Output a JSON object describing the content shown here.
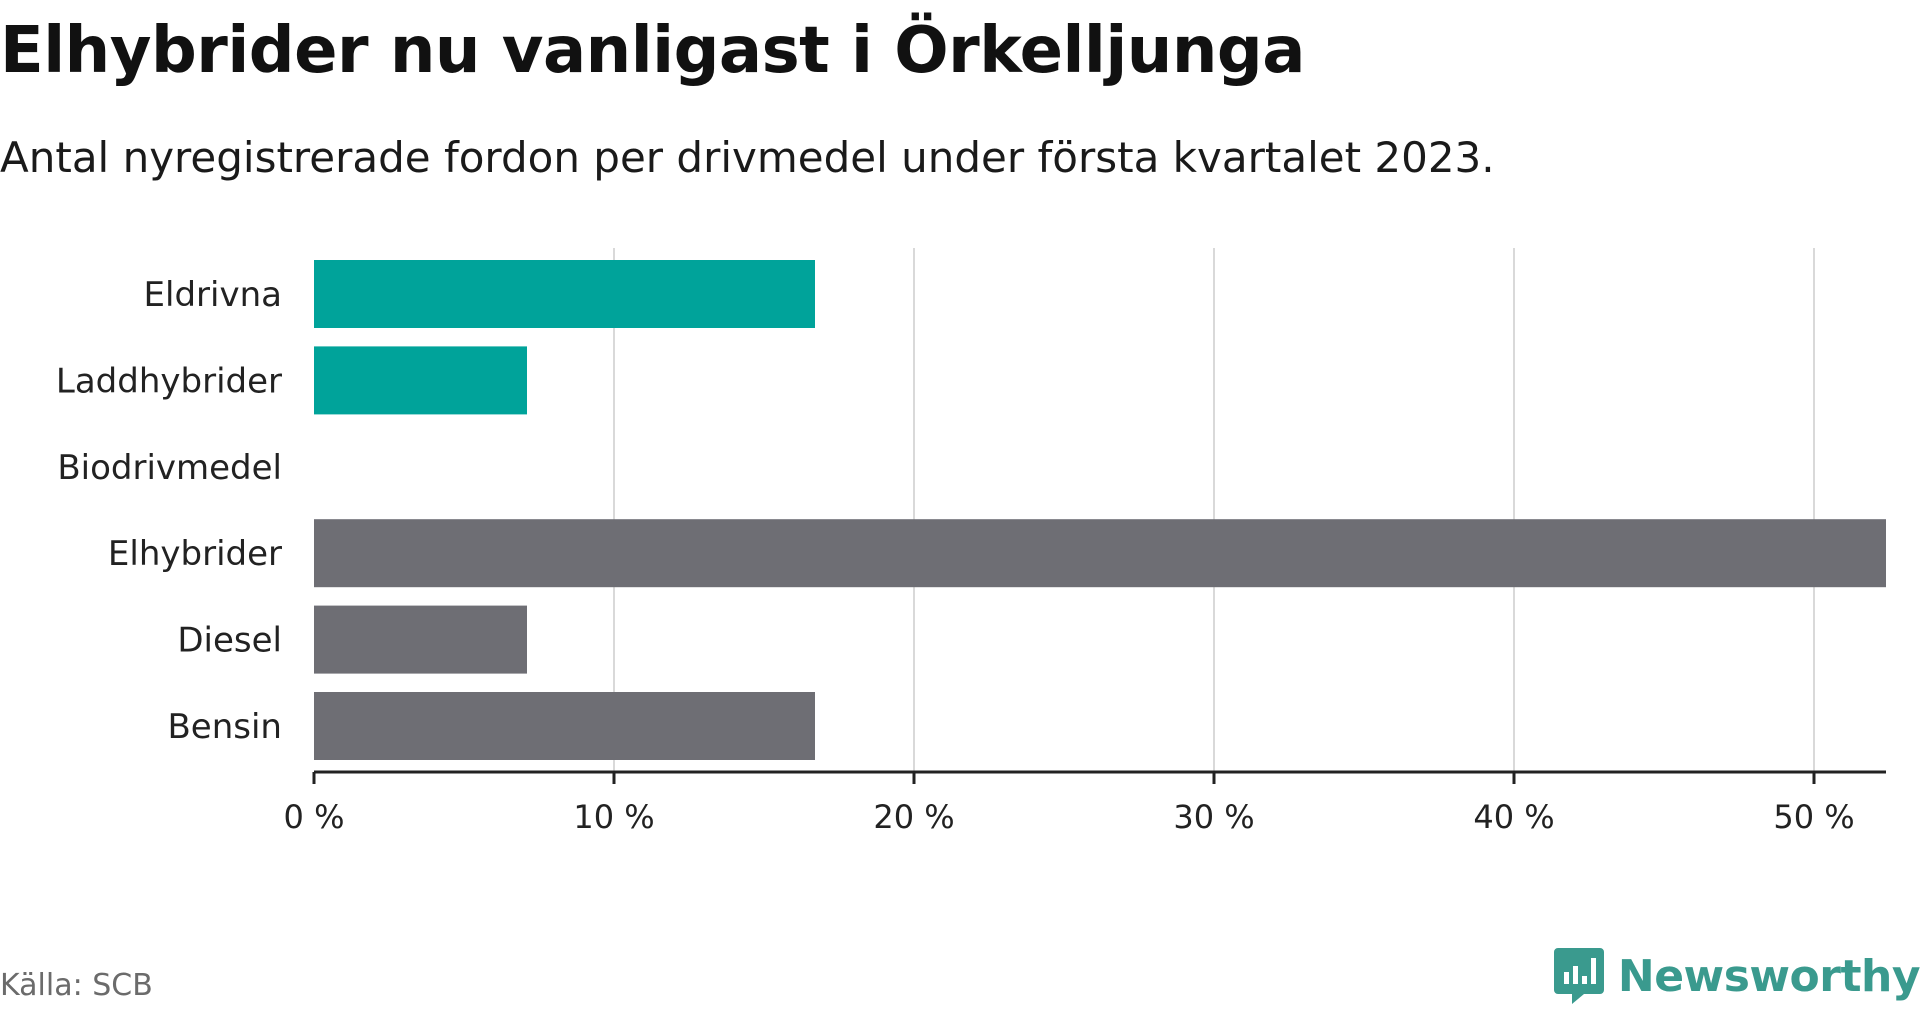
{
  "title": "Elhybrider nu vanligast i Örkelljunga",
  "subtitle": "Antal nyregistrerade fordon per drivmedel under första kvartalet 2023.",
  "source": "Källa: SCB",
  "brand": "Newsworthy",
  "colors": {
    "highlight": "#00a39a",
    "default": "#6e6e74",
    "grid": "#d9d9d9",
    "axis": "#222222",
    "brand": "#3a9a8e"
  },
  "chart_data": {
    "type": "bar",
    "orientation": "horizontal",
    "categories": [
      "Eldrivna",
      "Laddhybrider",
      "Biodrivmedel",
      "Elhybrider",
      "Diesel",
      "Bensin"
    ],
    "values": [
      16.7,
      7.1,
      0,
      52.4,
      7.1,
      16.7
    ],
    "highlighted": [
      true,
      true,
      true,
      false,
      false,
      false
    ],
    "xlim": [
      0,
      52.4
    ],
    "xticks": [
      0,
      10,
      20,
      30,
      40,
      50
    ],
    "xtick_labels": [
      "0 %",
      "10 %",
      "20 %",
      "30 %",
      "40 %",
      "50 %"
    ],
    "xlabel": "",
    "ylabel": "",
    "grid": true,
    "legend": "none"
  }
}
